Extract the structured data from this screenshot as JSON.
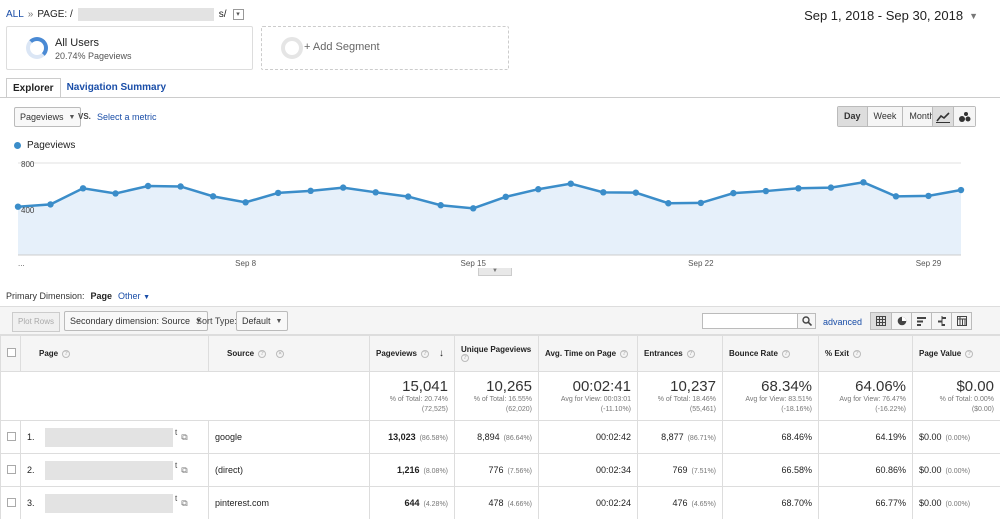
{
  "breadcrumb": {
    "all": "ALL",
    "sep": "»",
    "page_label": "PAGE: /",
    "page_suffix": "s/",
    "dropdown": "▾"
  },
  "date_range": {
    "label": "Sep 1, 2018 - Sep 30, 2018",
    "caret": "▼"
  },
  "segments": {
    "all_users": {
      "title": "All Users",
      "subtitle": "20.74% Pageviews"
    },
    "add": {
      "label": "+ Add Segment"
    }
  },
  "tabs": [
    {
      "label": "Explorer",
      "active": true
    },
    {
      "label": "Navigation Summary",
      "active": false
    }
  ],
  "controls": {
    "metric": "Pageviews",
    "vs": "VS.",
    "select_metric": "Select a metric",
    "ranges": [
      "Day",
      "Week",
      "Month"
    ]
  },
  "legend": {
    "label": "Pageviews",
    "color": "#3b8dc9"
  },
  "chart_data": {
    "type": "area",
    "series": [
      {
        "name": "Pageviews",
        "values": [
          420,
          440,
          580,
          535,
          600,
          596,
          510,
          458,
          540,
          558,
          586,
          545,
          508,
          433,
          406,
          506,
          572,
          620,
          545,
          542,
          450,
          453,
          538,
          556,
          580,
          586,
          632,
          510,
          514,
          565
        ]
      }
    ],
    "x": [
      1,
      2,
      3,
      4,
      5,
      6,
      7,
      8,
      9,
      10,
      11,
      12,
      13,
      14,
      15,
      16,
      17,
      18,
      19,
      20,
      21,
      22,
      23,
      24,
      25,
      26,
      27,
      28,
      29,
      30
    ],
    "x_tick_labels": [
      "...",
      "Sep 8",
      "Sep 15",
      "Sep 22",
      "Sep 29"
    ],
    "y_tick_labels": [
      "800",
      "400"
    ],
    "ylim": [
      0,
      800
    ],
    "grid": true
  },
  "primary_dimension": {
    "label": "Primary Dimension:",
    "value": "Page",
    "other": "Other"
  },
  "toolbar": {
    "plot_rows": "Plot Rows",
    "secondary_dimension": "Secondary dimension: Source",
    "sort_label": "Sort Type:",
    "sort_value": "Default",
    "advanced": "advanced"
  },
  "table": {
    "headers": {
      "page": "Page",
      "source": "Source",
      "pageviews": "Pageviews",
      "unique_pageviews": "Unique Pageviews",
      "avg_time": "Avg. Time on Page",
      "entrances": "Entrances",
      "bounce_rate": "Bounce Rate",
      "exit": "% Exit",
      "page_value": "Page Value"
    },
    "totals": {
      "pageviews": {
        "value": "15,041",
        "sub1": "% of Total: 20.74%",
        "sub2": "(72,525)"
      },
      "unique_pageviews": {
        "value": "10,265",
        "sub1": "% of Total: 16.55%",
        "sub2": "(62,020)"
      },
      "avg_time": {
        "value": "00:02:41",
        "sub1": "Avg for View: 00:03:01",
        "sub2": "(-11.10%)"
      },
      "entrances": {
        "value": "10,237",
        "sub1": "% of Total: 18.46%",
        "sub2": "(55,461)"
      },
      "bounce_rate": {
        "value": "68.34%",
        "sub1": "Avg for View: 83.51%",
        "sub2": "(-18.16%)"
      },
      "exit": {
        "value": "64.06%",
        "sub1": "Avg for View: 76.47%",
        "sub2": "(-16.22%)"
      },
      "page_value": {
        "value": "$0.00",
        "sub1": "% of Total: 0.00%",
        "sub2": "($0.00)"
      }
    },
    "rows": [
      {
        "num": "1.",
        "source": "google",
        "pageviews": "13,023",
        "pageviews_pct": "(86.58%)",
        "unique": "8,894",
        "unique_pct": "(86.64%)",
        "avg_time": "00:02:42",
        "entrances": "8,877",
        "entrances_pct": "(86.71%)",
        "bounce": "68.46%",
        "exit": "64.19%",
        "value": "$0.00",
        "value_pct": "(0.00%)"
      },
      {
        "num": "2.",
        "source": "(direct)",
        "pageviews": "1,216",
        "pageviews_pct": "(8.08%)",
        "unique": "776",
        "unique_pct": "(7.56%)",
        "avg_time": "00:02:34",
        "entrances": "769",
        "entrances_pct": "(7.51%)",
        "bounce": "66.58%",
        "exit": "60.86%",
        "value": "$0.00",
        "value_pct": "(0.00%)"
      },
      {
        "num": "3.",
        "source": "pinterest.com",
        "pageviews": "644",
        "pageviews_pct": "(4.28%)",
        "unique": "478",
        "unique_pct": "(4.66%)",
        "avg_time": "00:02:24",
        "entrances": "476",
        "entrances_pct": "(4.65%)",
        "bounce": "68.70%",
        "exit": "66.77%",
        "value": "$0.00",
        "value_pct": "(0.00%)"
      }
    ]
  }
}
